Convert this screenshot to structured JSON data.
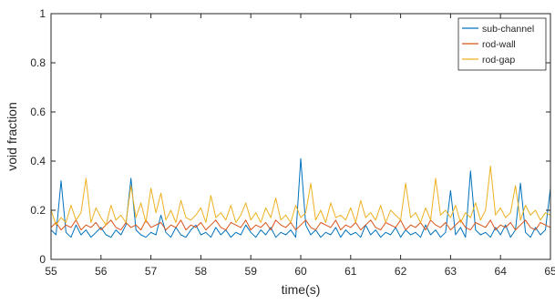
{
  "chart_data": {
    "type": "line",
    "title": "",
    "xlabel": "time(s)",
    "ylabel": "void fraction",
    "xlim": [
      55,
      65
    ],
    "ylim": [
      0,
      1
    ],
    "xticks": [
      "55",
      "56",
      "57",
      "58",
      "59",
      "60",
      "61",
      "62",
      "63",
      "64",
      "65"
    ],
    "yticks": [
      "0",
      "0.2",
      "0.4",
      "0.6",
      "0.8",
      "1"
    ],
    "grid": false,
    "legend_position": "top-right",
    "series": [
      {
        "name": "sub-channel",
        "color": "#0072BD",
        "x": [
          55.0,
          55.1,
          55.2,
          55.3,
          55.4,
          55.5,
          55.6,
          55.7,
          55.8,
          55.9,
          56.0,
          56.1,
          56.2,
          56.3,
          56.4,
          56.5,
          56.6,
          56.7,
          56.8,
          56.9,
          57.0,
          57.1,
          57.2,
          57.3,
          57.4,
          57.5,
          57.6,
          57.7,
          57.8,
          57.9,
          58.0,
          58.1,
          58.2,
          58.3,
          58.4,
          58.5,
          58.6,
          58.7,
          58.8,
          58.9,
          59.0,
          59.1,
          59.2,
          59.3,
          59.4,
          59.5,
          59.6,
          59.7,
          59.8,
          59.9,
          60.0,
          60.1,
          60.2,
          60.3,
          60.4,
          60.5,
          60.6,
          60.7,
          60.8,
          60.9,
          61.0,
          61.1,
          61.2,
          61.3,
          61.4,
          61.5,
          61.6,
          61.7,
          61.8,
          61.9,
          62.0,
          62.1,
          62.2,
          62.3,
          62.4,
          62.5,
          62.6,
          62.7,
          62.8,
          62.9,
          63.0,
          63.1,
          63.2,
          63.3,
          63.4,
          63.5,
          63.6,
          63.7,
          63.8,
          63.9,
          64.0,
          64.1,
          64.2,
          64.3,
          64.4,
          64.5,
          64.6,
          64.7,
          64.8,
          64.9,
          65.0
        ],
        "values": [
          0.12,
          0.1,
          0.32,
          0.11,
          0.09,
          0.14,
          0.1,
          0.12,
          0.09,
          0.11,
          0.13,
          0.1,
          0.09,
          0.12,
          0.1,
          0.14,
          0.33,
          0.12,
          0.1,
          0.09,
          0.11,
          0.1,
          0.18,
          0.11,
          0.09,
          0.13,
          0.1,
          0.09,
          0.12,
          0.14,
          0.1,
          0.11,
          0.09,
          0.13,
          0.1,
          0.12,
          0.09,
          0.11,
          0.1,
          0.14,
          0.11,
          0.09,
          0.12,
          0.1,
          0.13,
          0.09,
          0.11,
          0.1,
          0.12,
          0.09,
          0.41,
          0.14,
          0.1,
          0.12,
          0.09,
          0.11,
          0.1,
          0.13,
          0.09,
          0.12,
          0.1,
          0.11,
          0.09,
          0.14,
          0.1,
          0.12,
          0.09,
          0.11,
          0.1,
          0.13,
          0.09,
          0.12,
          0.1,
          0.11,
          0.09,
          0.14,
          0.1,
          0.12,
          0.09,
          0.11,
          0.28,
          0.1,
          0.13,
          0.09,
          0.36,
          0.12,
          0.1,
          0.11,
          0.09,
          0.13,
          0.1,
          0.14,
          0.09,
          0.12,
          0.31,
          0.11,
          0.09,
          0.13,
          0.1,
          0.12,
          0.29
        ]
      },
      {
        "name": "rod-wall",
        "color": "#D95319",
        "x": [
          55.0,
          55.1,
          55.2,
          55.3,
          55.4,
          55.5,
          55.6,
          55.7,
          55.8,
          55.9,
          56.0,
          56.1,
          56.2,
          56.3,
          56.4,
          56.5,
          56.6,
          56.7,
          56.8,
          56.9,
          57.0,
          57.1,
          57.2,
          57.3,
          57.4,
          57.5,
          57.6,
          57.7,
          57.8,
          57.9,
          58.0,
          58.1,
          58.2,
          58.3,
          58.4,
          58.5,
          58.6,
          58.7,
          58.8,
          58.9,
          59.0,
          59.1,
          59.2,
          59.3,
          59.4,
          59.5,
          59.6,
          59.7,
          59.8,
          59.9,
          60.0,
          60.1,
          60.2,
          60.3,
          60.4,
          60.5,
          60.6,
          60.7,
          60.8,
          60.9,
          61.0,
          61.1,
          61.2,
          61.3,
          61.4,
          61.5,
          61.6,
          61.7,
          61.8,
          61.9,
          62.0,
          62.1,
          62.2,
          62.3,
          62.4,
          62.5,
          62.6,
          62.7,
          62.8,
          62.9,
          63.0,
          63.1,
          63.2,
          63.3,
          63.4,
          63.5,
          63.6,
          63.7,
          63.8,
          63.9,
          64.0,
          64.1,
          64.2,
          64.3,
          64.4,
          64.5,
          64.6,
          64.7,
          64.8,
          64.9,
          65.0
        ],
        "values": [
          0.13,
          0.15,
          0.12,
          0.14,
          0.13,
          0.16,
          0.12,
          0.14,
          0.13,
          0.15,
          0.12,
          0.14,
          0.16,
          0.13,
          0.12,
          0.15,
          0.13,
          0.14,
          0.12,
          0.16,
          0.13,
          0.14,
          0.15,
          0.12,
          0.14,
          0.13,
          0.16,
          0.12,
          0.14,
          0.13,
          0.15,
          0.12,
          0.14,
          0.16,
          0.13,
          0.12,
          0.15,
          0.14,
          0.13,
          0.16,
          0.12,
          0.14,
          0.13,
          0.15,
          0.12,
          0.16,
          0.14,
          0.13,
          0.15,
          0.12,
          0.14,
          0.16,
          0.13,
          0.12,
          0.15,
          0.14,
          0.13,
          0.16,
          0.12,
          0.14,
          0.13,
          0.15,
          0.12,
          0.14,
          0.16,
          0.13,
          0.12,
          0.15,
          0.14,
          0.13,
          0.16,
          0.12,
          0.14,
          0.13,
          0.15,
          0.12,
          0.16,
          0.14,
          0.13,
          0.15,
          0.12,
          0.14,
          0.16,
          0.13,
          0.12,
          0.15,
          0.14,
          0.13,
          0.16,
          0.12,
          0.14,
          0.13,
          0.15,
          0.12,
          0.14,
          0.16,
          0.13,
          0.12,
          0.15,
          0.14,
          0.13
        ]
      },
      {
        "name": "rod-gap",
        "color": "#EDB120",
        "x": [
          55.0,
          55.1,
          55.2,
          55.3,
          55.4,
          55.5,
          55.6,
          55.7,
          55.8,
          55.9,
          56.0,
          56.1,
          56.2,
          56.3,
          56.4,
          56.5,
          56.6,
          56.7,
          56.8,
          56.9,
          57.0,
          57.1,
          57.2,
          57.3,
          57.4,
          57.5,
          57.6,
          57.7,
          57.8,
          57.9,
          58.0,
          58.1,
          58.2,
          58.3,
          58.4,
          58.5,
          58.6,
          58.7,
          58.8,
          58.9,
          59.0,
          59.1,
          59.2,
          59.3,
          59.4,
          59.5,
          59.6,
          59.7,
          59.8,
          59.9,
          60.0,
          60.1,
          60.2,
          60.3,
          60.4,
          60.5,
          60.6,
          60.7,
          60.8,
          60.9,
          61.0,
          61.1,
          61.2,
          61.3,
          61.4,
          61.5,
          61.6,
          61.7,
          61.8,
          61.9,
          62.0,
          62.1,
          62.2,
          62.3,
          62.4,
          62.5,
          62.6,
          62.7,
          62.8,
          62.9,
          63.0,
          63.1,
          63.2,
          63.3,
          63.4,
          63.5,
          63.6,
          63.7,
          63.8,
          63.9,
          64.0,
          64.1,
          64.2,
          64.3,
          64.4,
          64.5,
          64.6,
          64.7,
          64.8,
          64.9,
          65.0
        ],
        "values": [
          0.2,
          0.14,
          0.17,
          0.15,
          0.22,
          0.16,
          0.19,
          0.33,
          0.15,
          0.21,
          0.17,
          0.14,
          0.22,
          0.16,
          0.18,
          0.15,
          0.3,
          0.17,
          0.23,
          0.15,
          0.29,
          0.19,
          0.27,
          0.16,
          0.2,
          0.15,
          0.24,
          0.17,
          0.16,
          0.18,
          0.21,
          0.15,
          0.26,
          0.17,
          0.19,
          0.16,
          0.22,
          0.15,
          0.18,
          0.23,
          0.16,
          0.19,
          0.15,
          0.21,
          0.17,
          0.25,
          0.16,
          0.18,
          0.15,
          0.22,
          0.17,
          0.19,
          0.31,
          0.16,
          0.2,
          0.15,
          0.23,
          0.17,
          0.18,
          0.16,
          0.21,
          0.15,
          0.24,
          0.17,
          0.19,
          0.16,
          0.22,
          0.15,
          0.2,
          0.18,
          0.16,
          0.31,
          0.17,
          0.19,
          0.15,
          0.21,
          0.16,
          0.33,
          0.18,
          0.2,
          0.17,
          0.22,
          0.15,
          0.19,
          0.17,
          0.23,
          0.16,
          0.2,
          0.38,
          0.18,
          0.21,
          0.17,
          0.19,
          0.3,
          0.16,
          0.22,
          0.18,
          0.2,
          0.16,
          0.19,
          0.18
        ]
      }
    ]
  }
}
